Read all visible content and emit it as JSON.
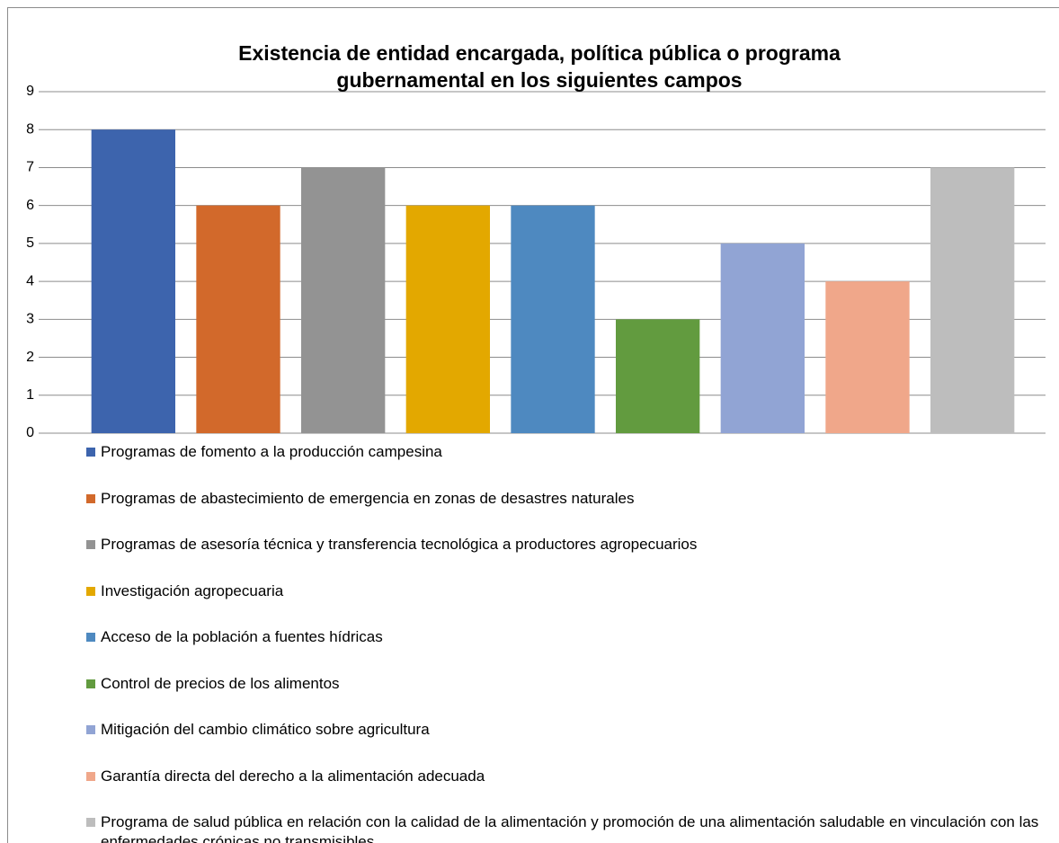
{
  "chart_data": {
    "type": "bar",
    "title": "Existencia de entidad encargada, política pública o  programa gubernamental en los siguientes campos",
    "categories": [
      "Programas de fomento a la producción campesina",
      "Programas de abastecimiento de emergencia en zonas de desastres naturales",
      "Programas de asesoría técnica y transferencia tecnológica a productores agropecuarios",
      "Investigación agropecuaria",
      "Acceso de la población a fuentes hídricas",
      "Control de precios de los alimentos",
      "Mitigación del cambio climático sobre agricultura",
      " Garantía directa del derecho a la alimentación adecuada",
      "Programa de salud pública en relación con la calidad de la alimentación y promoción de una alimentación saludable en vinculación con las enfermedades crónicas no transmisibles."
    ],
    "values": [
      8,
      6,
      7,
      6,
      6,
      3,
      5,
      4,
      7
    ],
    "colors": [
      "#3d64ad",
      "#d2692b",
      "#939393",
      "#e3a800",
      "#4e89c0",
      "#629b3f",
      "#91a4d4",
      "#f0a78a",
      "#bdbdbd"
    ],
    "ylim": [
      0,
      9
    ],
    "yticks": [
      0,
      1,
      2,
      3,
      4,
      5,
      6,
      7,
      8,
      9
    ],
    "grid": true
  }
}
